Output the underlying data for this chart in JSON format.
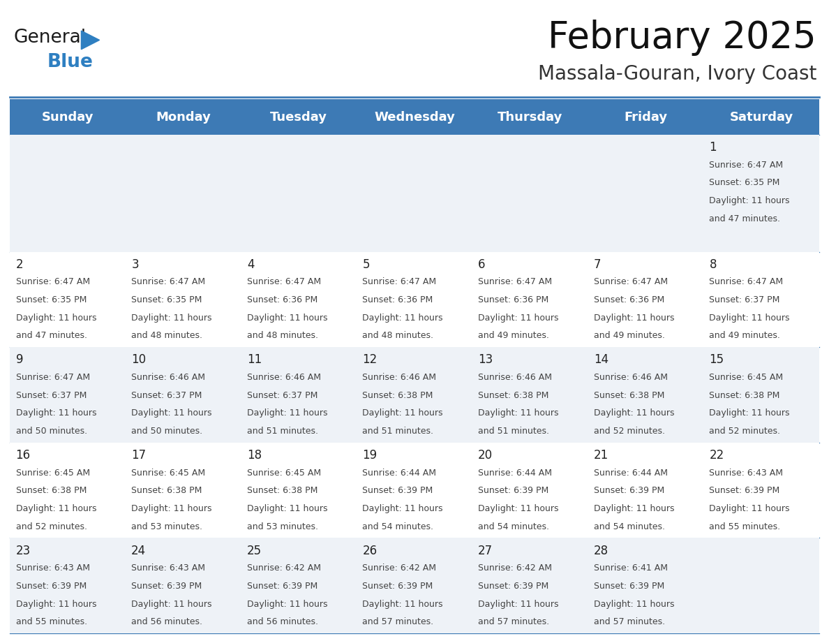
{
  "title": "February 2025",
  "subtitle": "Massala-Gouran, Ivory Coast",
  "header_bg": "#3d7ab5",
  "header_text_color": "#ffffff",
  "row_bg_light": "#eef2f7",
  "row_bg_white": "#ffffff",
  "day_headers": [
    "Sunday",
    "Monday",
    "Tuesday",
    "Wednesday",
    "Thursday",
    "Friday",
    "Saturday"
  ],
  "days_data": [
    {
      "day": 1,
      "col": 6,
      "row": 0,
      "sunrise": "6:47 AM",
      "sunset": "6:35 PM",
      "daylight": "11 hours\nand 47 minutes."
    },
    {
      "day": 2,
      "col": 0,
      "row": 1,
      "sunrise": "6:47 AM",
      "sunset": "6:35 PM",
      "daylight": "11 hours\nand 47 minutes."
    },
    {
      "day": 3,
      "col": 1,
      "row": 1,
      "sunrise": "6:47 AM",
      "sunset": "6:35 PM",
      "daylight": "11 hours\nand 48 minutes."
    },
    {
      "day": 4,
      "col": 2,
      "row": 1,
      "sunrise": "6:47 AM",
      "sunset": "6:36 PM",
      "daylight": "11 hours\nand 48 minutes."
    },
    {
      "day": 5,
      "col": 3,
      "row": 1,
      "sunrise": "6:47 AM",
      "sunset": "6:36 PM",
      "daylight": "11 hours\nand 48 minutes."
    },
    {
      "day": 6,
      "col": 4,
      "row": 1,
      "sunrise": "6:47 AM",
      "sunset": "6:36 PM",
      "daylight": "11 hours\nand 49 minutes."
    },
    {
      "day": 7,
      "col": 5,
      "row": 1,
      "sunrise": "6:47 AM",
      "sunset": "6:36 PM",
      "daylight": "11 hours\nand 49 minutes."
    },
    {
      "day": 8,
      "col": 6,
      "row": 1,
      "sunrise": "6:47 AM",
      "sunset": "6:37 PM",
      "daylight": "11 hours\nand 49 minutes."
    },
    {
      "day": 9,
      "col": 0,
      "row": 2,
      "sunrise": "6:47 AM",
      "sunset": "6:37 PM",
      "daylight": "11 hours\nand 50 minutes."
    },
    {
      "day": 10,
      "col": 1,
      "row": 2,
      "sunrise": "6:46 AM",
      "sunset": "6:37 PM",
      "daylight": "11 hours\nand 50 minutes."
    },
    {
      "day": 11,
      "col": 2,
      "row": 2,
      "sunrise": "6:46 AM",
      "sunset": "6:37 PM",
      "daylight": "11 hours\nand 51 minutes."
    },
    {
      "day": 12,
      "col": 3,
      "row": 2,
      "sunrise": "6:46 AM",
      "sunset": "6:38 PM",
      "daylight": "11 hours\nand 51 minutes."
    },
    {
      "day": 13,
      "col": 4,
      "row": 2,
      "sunrise": "6:46 AM",
      "sunset": "6:38 PM",
      "daylight": "11 hours\nand 51 minutes."
    },
    {
      "day": 14,
      "col": 5,
      "row": 2,
      "sunrise": "6:46 AM",
      "sunset": "6:38 PM",
      "daylight": "11 hours\nand 52 minutes."
    },
    {
      "day": 15,
      "col": 6,
      "row": 2,
      "sunrise": "6:45 AM",
      "sunset": "6:38 PM",
      "daylight": "11 hours\nand 52 minutes."
    },
    {
      "day": 16,
      "col": 0,
      "row": 3,
      "sunrise": "6:45 AM",
      "sunset": "6:38 PM",
      "daylight": "11 hours\nand 52 minutes."
    },
    {
      "day": 17,
      "col": 1,
      "row": 3,
      "sunrise": "6:45 AM",
      "sunset": "6:38 PM",
      "daylight": "11 hours\nand 53 minutes."
    },
    {
      "day": 18,
      "col": 2,
      "row": 3,
      "sunrise": "6:45 AM",
      "sunset": "6:38 PM",
      "daylight": "11 hours\nand 53 minutes."
    },
    {
      "day": 19,
      "col": 3,
      "row": 3,
      "sunrise": "6:44 AM",
      "sunset": "6:39 PM",
      "daylight": "11 hours\nand 54 minutes."
    },
    {
      "day": 20,
      "col": 4,
      "row": 3,
      "sunrise": "6:44 AM",
      "sunset": "6:39 PM",
      "daylight": "11 hours\nand 54 minutes."
    },
    {
      "day": 21,
      "col": 5,
      "row": 3,
      "sunrise": "6:44 AM",
      "sunset": "6:39 PM",
      "daylight": "11 hours\nand 54 minutes."
    },
    {
      "day": 22,
      "col": 6,
      "row": 3,
      "sunrise": "6:43 AM",
      "sunset": "6:39 PM",
      "daylight": "11 hours\nand 55 minutes."
    },
    {
      "day": 23,
      "col": 0,
      "row": 4,
      "sunrise": "6:43 AM",
      "sunset": "6:39 PM",
      "daylight": "11 hours\nand 55 minutes."
    },
    {
      "day": 24,
      "col": 1,
      "row": 4,
      "sunrise": "6:43 AM",
      "sunset": "6:39 PM",
      "daylight": "11 hours\nand 56 minutes."
    },
    {
      "day": 25,
      "col": 2,
      "row": 4,
      "sunrise": "6:42 AM",
      "sunset": "6:39 PM",
      "daylight": "11 hours\nand 56 minutes."
    },
    {
      "day": 26,
      "col": 3,
      "row": 4,
      "sunrise": "6:42 AM",
      "sunset": "6:39 PM",
      "daylight": "11 hours\nand 57 minutes."
    },
    {
      "day": 27,
      "col": 4,
      "row": 4,
      "sunrise": "6:42 AM",
      "sunset": "6:39 PM",
      "daylight": "11 hours\nand 57 minutes."
    },
    {
      "day": 28,
      "col": 5,
      "row": 4,
      "sunrise": "6:41 AM",
      "sunset": "6:39 PM",
      "daylight": "11 hours\nand 57 minutes."
    }
  ],
  "num_rows": 5,
  "num_cols": 7,
  "text_color": "#333333",
  "line_color": "#3d7ab5",
  "bg_color": "#ffffff",
  "title_fontsize": 38,
  "subtitle_fontsize": 20,
  "header_fontsize": 13,
  "day_num_fontsize": 12,
  "cell_text_fontsize": 9
}
